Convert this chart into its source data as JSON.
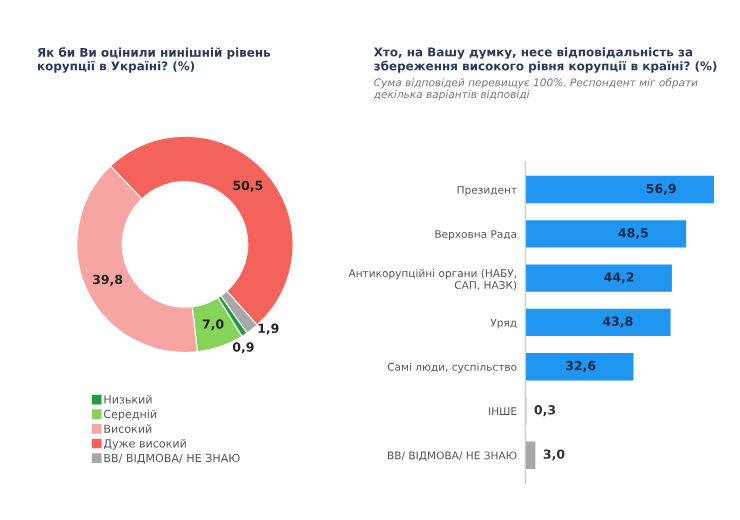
{
  "chart_data": [
    {
      "type": "donut",
      "title": "Як би Ви оцінили нинішній рівень\nкорупції в Україні? (%)",
      "categories": [
        "Низький",
        "Середній",
        "Високий",
        "Дуже високий",
        "ВВ/ ВІДМОВА/ НЕ ЗНАЮ"
      ],
      "values": [
        0.9,
        7.0,
        39.8,
        50.5,
        1.9
      ],
      "colors": [
        "#1e9e3e",
        "#86d35a",
        "#f6a5a3",
        "#f4625c",
        "#a8a8a8"
      ],
      "value_labels": [
        "0,9",
        "7,0",
        "39,8",
        "50,5",
        "1,9"
      ],
      "legend": "bottom"
    },
    {
      "type": "bar",
      "orientation": "horizontal",
      "title": "Хто, на Вашу думку, несе відповідальність за\nзбереження високого рівня корупції в країні? (%)",
      "subtitle": "Сума відповідей перевищує 100%. Респондент міг обрати\nдекілька варіантів відповіді",
      "categories": [
        "Президент",
        "Верховна Рада",
        "Антикорупційні органи (НАБУ,\nСАП, НАЗК)",
        "Уряд",
        "Самі люди, суспільство",
        "ІНШЕ",
        "ВВ/ ВІДМОВА/ НЕ ЗНАЮ"
      ],
      "values": [
        56.9,
        48.5,
        44.2,
        43.8,
        32.6,
        0.3,
        3.0
      ],
      "colors": [
        "#2196f0",
        "#2196f0",
        "#2196f0",
        "#2196f0",
        "#2196f0",
        "#a8a8a8",
        "#a8a8a8"
      ],
      "value_labels": [
        "56,9",
        "48,5",
        "44,2",
        "43,8",
        "32,6",
        "0,3",
        "3,0"
      ]
    }
  ]
}
